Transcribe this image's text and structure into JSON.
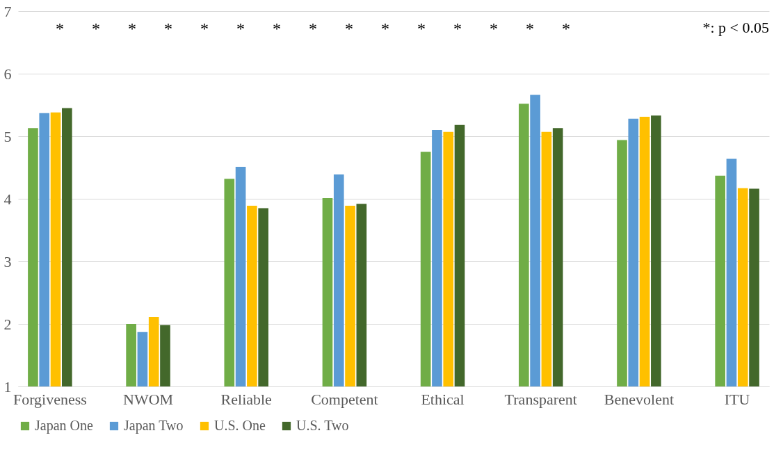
{
  "chart_data": {
    "type": "bar",
    "categories": [
      "Forgiveness",
      "NWOM",
      "Reliable",
      "Competent",
      "Ethical",
      "Transparent",
      "Benevolent",
      "ITU"
    ],
    "series": [
      {
        "name": "Japan One",
        "color": "#70ad47",
        "values": [
          5.13,
          2.0,
          4.32,
          4.01,
          4.75,
          5.52,
          4.94,
          4.37
        ]
      },
      {
        "name": "Japan Two",
        "color": "#5b9bd5",
        "values": [
          5.37,
          1.87,
          4.51,
          4.39,
          5.1,
          5.66,
          5.28,
          4.64
        ]
      },
      {
        "name": "U.S. One",
        "color": "#ffc000",
        "values": [
          5.38,
          2.11,
          3.89,
          3.89,
          5.07,
          5.07,
          5.31,
          4.17
        ]
      },
      {
        "name": "U.S. Two",
        "color": "#43682b",
        "values": [
          5.45,
          1.98,
          3.85,
          3.92,
          5.18,
          5.13,
          5.33,
          4.16
        ]
      }
    ],
    "ylim": [
      1,
      7
    ],
    "yticks": [
      1,
      2,
      3,
      4,
      5,
      6,
      7
    ],
    "grid": "y",
    "legend": "bottom",
    "annotations": [
      "*: p < 0.05",
      "*",
      "*",
      "*",
      "*",
      "*",
      "*",
      "*",
      "*",
      "*",
      "*",
      "*",
      "*",
      "*",
      "*",
      "*"
    ]
  }
}
